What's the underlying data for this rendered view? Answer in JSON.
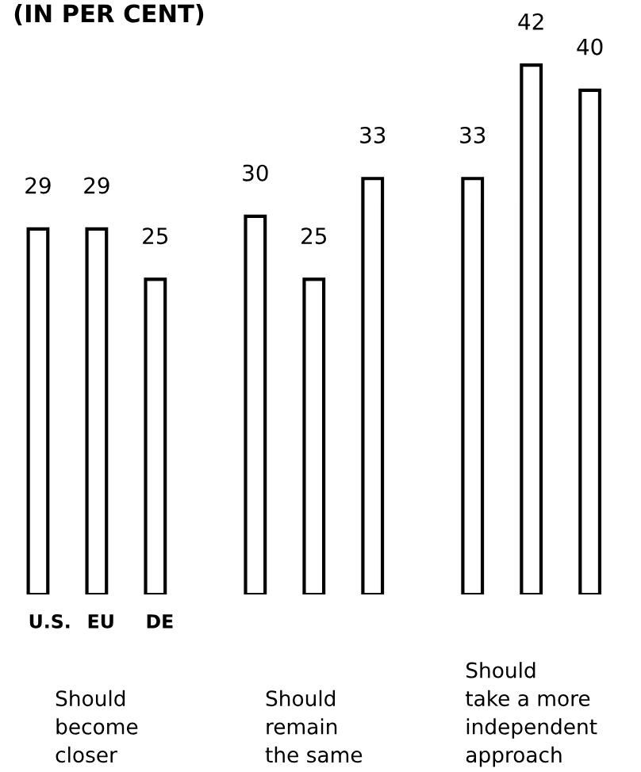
{
  "chart_data": {
    "type": "bar",
    "title": "(IN PER CENT)",
    "categories": [
      "Should\nbecome\ncloser",
      "Should\nremain\nthe same",
      "Should\ntake a more\nindependent\napproach"
    ],
    "series": [
      {
        "name": "U.S.",
        "values": [
          29,
          30,
          33
        ]
      },
      {
        "name": "EU",
        "values": [
          29,
          25,
          42
        ]
      },
      {
        "name": "DE",
        "values": [
          25,
          33,
          40
        ]
      }
    ],
    "data_labels": true
  }
}
